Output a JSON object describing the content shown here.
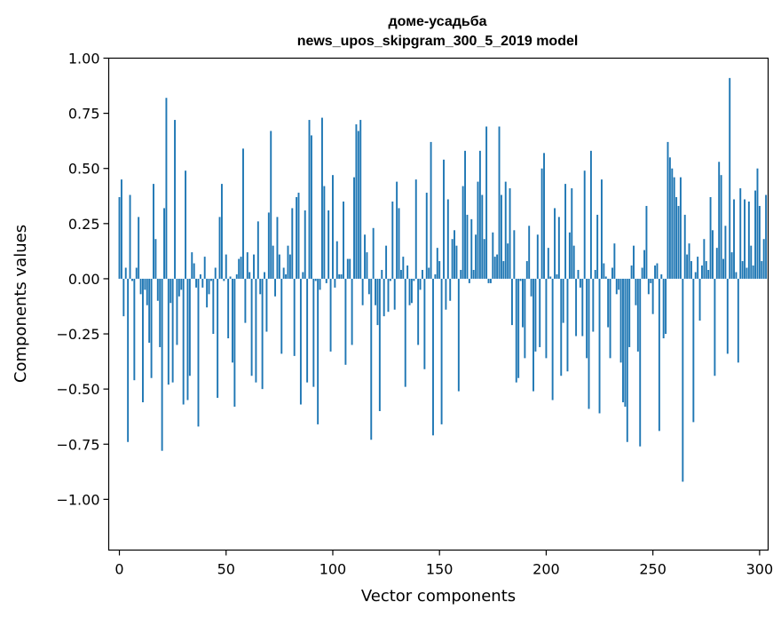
{
  "chart_data": {
    "type": "bar",
    "title": "доме-усадьба",
    "subtitle": "news_upos_skipgram_300_5_2019 model",
    "xlabel": "Vector components",
    "ylabel": "Components values",
    "xlim": [
      -5,
      304
    ],
    "ylim": [
      -1.23,
      1.0
    ],
    "xticks": [
      0,
      50,
      100,
      150,
      200,
      250,
      300
    ],
    "yticks": [
      1.0,
      0.75,
      0.5,
      0.25,
      0.0,
      -0.25,
      -0.5,
      -0.75,
      -1.0
    ],
    "ytick_labels": [
      "1.00",
      "0.75",
      "0.50",
      "0.25",
      "0.00",
      "−0.25",
      "−0.50",
      "−0.75",
      "−1.00"
    ],
    "xtick_labels": [
      "0",
      "50",
      "100",
      "150",
      "200",
      "250",
      "300"
    ],
    "bar_color": "#1f77b4",
    "grid": false,
    "values": [
      0.37,
      0.45,
      -0.17,
      0.05,
      -0.74,
      0.38,
      -0.01,
      -0.46,
      0.05,
      0.28,
      -0.07,
      -0.56,
      -0.05,
      -0.12,
      -0.29,
      -0.45,
      0.43,
      0.18,
      -0.1,
      -0.31,
      -0.78,
      0.32,
      0.82,
      -0.48,
      -0.11,
      -0.47,
      0.72,
      -0.3,
      -0.08,
      -0.05,
      -0.57,
      0.49,
      -0.55,
      -0.44,
      0.12,
      0.07,
      -0.04,
      -0.67,
      0.02,
      -0.04,
      0.1,
      -0.13,
      -0.07,
      -0.01,
      -0.25,
      0.05,
      -0.54,
      0.28,
      0.43,
      -0.01,
      0.11,
      -0.27,
      0.01,
      -0.38,
      -0.58,
      0.02,
      0.09,
      0.1,
      0.59,
      -0.2,
      0.12,
      0.03,
      -0.44,
      0.11,
      -0.47,
      0.26,
      -0.07,
      -0.5,
      0.03,
      -0.24,
      0.3,
      0.67,
      0.15,
      -0.08,
      0.28,
      0.11,
      -0.34,
      0.05,
      0.02,
      0.15,
      0.11,
      0.32,
      -0.35,
      0.37,
      0.39,
      -0.57,
      0.03,
      0.31,
      -0.47,
      0.72,
      0.65,
      -0.49,
      -0.01,
      -0.66,
      -0.05,
      0.73,
      0.42,
      -0.02,
      0.31,
      -0.33,
      0.47,
      -0.04,
      0.17,
      0.02,
      0.02,
      0.35,
      -0.39,
      0.09,
      0.09,
      -0.3,
      0.46,
      0.7,
      0.67,
      0.72,
      -0.12,
      0.2,
      0.12,
      -0.07,
      -0.73,
      0.23,
      -0.12,
      -0.21,
      -0.6,
      0.04,
      -0.17,
      0.15,
      -0.15,
      -0.01,
      0.35,
      -0.14,
      0.44,
      0.32,
      0.04,
      0.1,
      -0.49,
      0.06,
      -0.12,
      -0.11,
      -0.01,
      0.45,
      -0.3,
      -0.05,
      0.04,
      -0.41,
      0.39,
      0.05,
      0.62,
      -0.71,
      0.02,
      0.14,
      0.08,
      -0.66,
      0.54,
      -0.14,
      0.36,
      -0.1,
      0.18,
      0.22,
      0.15,
      -0.51,
      0.04,
      0.42,
      0.58,
      0.29,
      -0.02,
      0.27,
      0.04,
      0.2,
      0.44,
      0.58,
      0.38,
      0.18,
      0.69,
      -0.02,
      -0.02,
      0.21,
      0.1,
      0.11,
      0.69,
      0.38,
      0.08,
      0.44,
      0.16,
      0.41,
      -0.21,
      0.22,
      -0.47,
      -0.45,
      -0.01,
      -0.22,
      -0.36,
      0.08,
      0.24,
      -0.08,
      -0.51,
      -0.33,
      0.2,
      -0.31,
      0.5,
      0.57,
      -0.36,
      0.14,
      0.01,
      -0.55,
      0.32,
      0.02,
      0.28,
      -0.44,
      -0.2,
      0.43,
      -0.42,
      0.21,
      0.41,
      0.15,
      -0.26,
      0.04,
      -0.04,
      -0.26,
      0.49,
      -0.36,
      -0.59,
      0.58,
      -0.24,
      0.04,
      0.29,
      -0.61,
      0.45,
      0.07,
      0.01,
      -0.22,
      -0.36,
      0.05,
      0.16,
      -0.07,
      -0.05,
      -0.38,
      -0.56,
      -0.58,
      -0.74,
      -0.31,
      0.06,
      0.15,
      -0.12,
      -0.33,
      -0.76,
      0.05,
      0.13,
      0.33,
      -0.07,
      -0.02,
      -0.16,
      0.06,
      0.07,
      -0.69,
      0.02,
      -0.27,
      -0.25,
      0.62,
      0.55,
      0.5,
      0.46,
      0.37,
      0.33,
      0.46,
      -0.92,
      0.29,
      0.11,
      0.16,
      0.08,
      -0.65,
      0.03,
      0.1,
      -0.19,
      0.06,
      0.18,
      0.08,
      0.04,
      0.37,
      0.22,
      -0.44,
      0.14,
      0.53,
      0.47,
      0.09,
      0.24,
      -0.34,
      0.91,
      0.12,
      0.36,
      0.03,
      -0.38,
      0.41,
      0.08,
      0.36,
      0.05,
      0.35,
      0.15,
      0.06,
      0.4,
      0.5,
      0.33,
      0.08,
      0.18,
      0.38
    ]
  }
}
